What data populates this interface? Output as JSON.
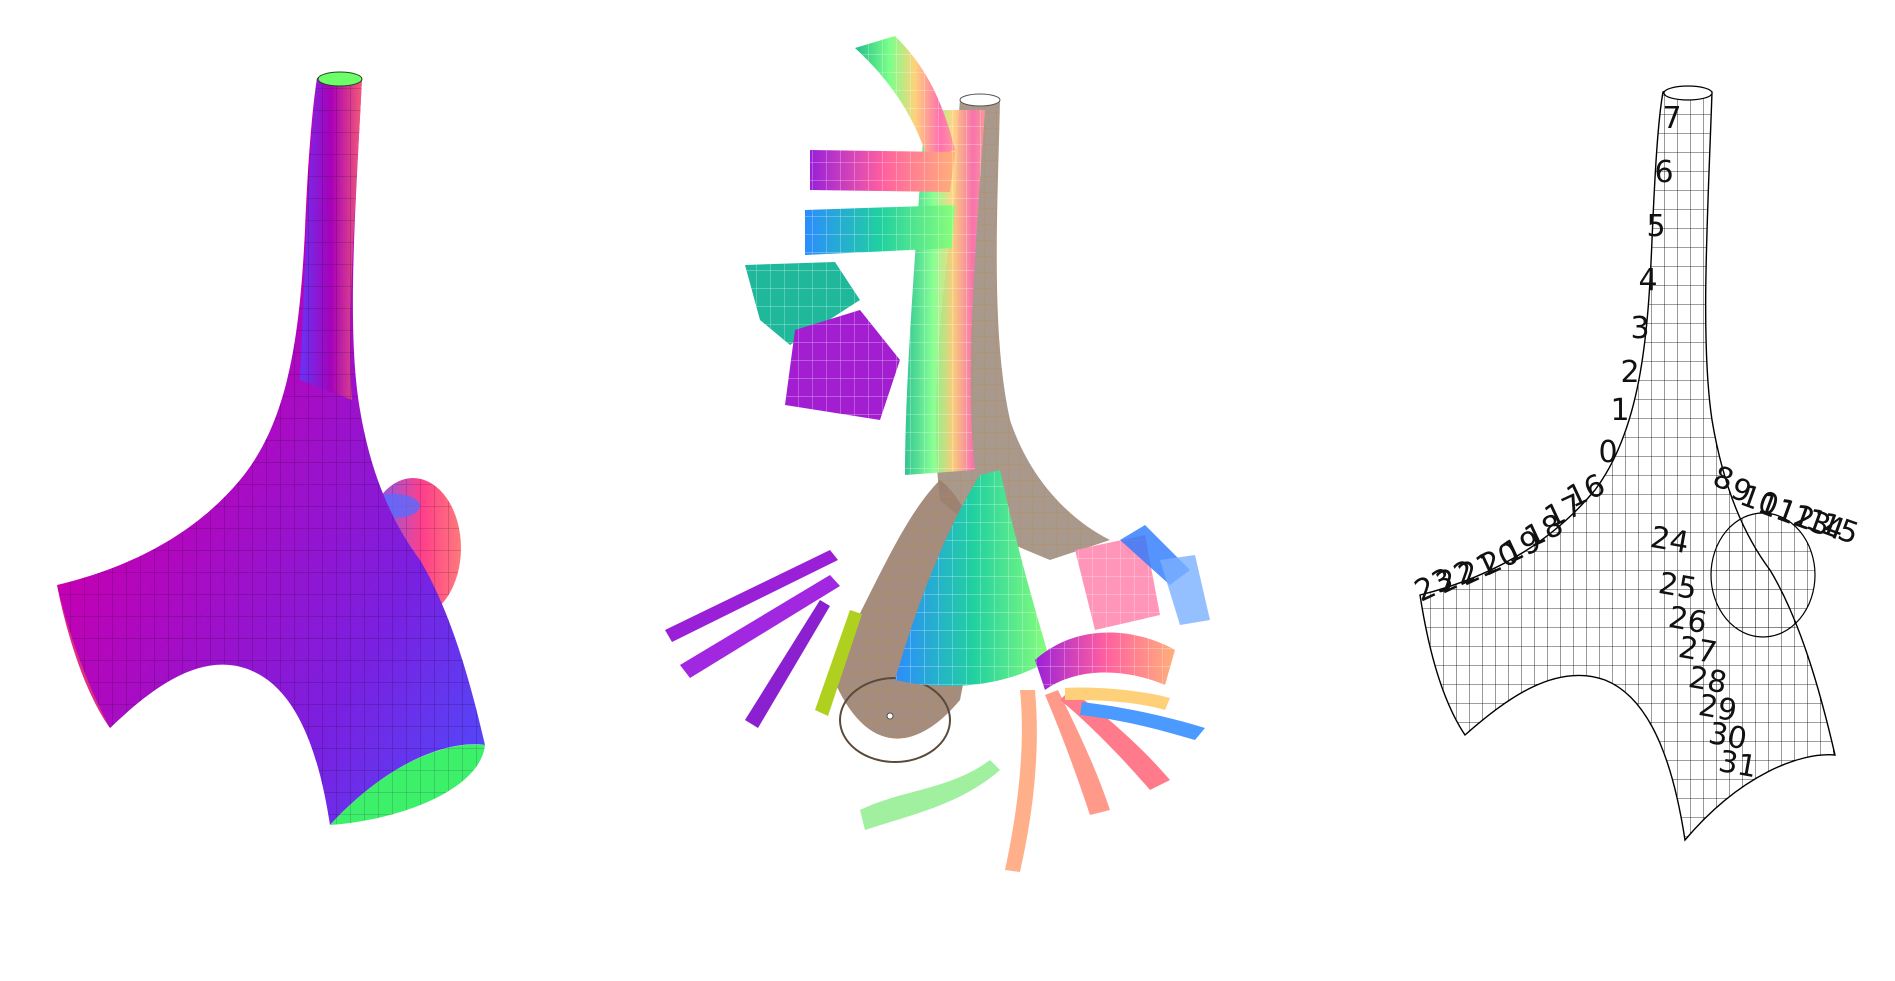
{
  "figure": {
    "panels": [
      {
        "id": "left",
        "style": "shaded-gradient",
        "colors": [
          "#ff6a6a",
          "#b000a8",
          "#5a2bff",
          "#3cff7a"
        ]
      },
      {
        "id": "middle",
        "style": "exploded-patches",
        "colors": [
          "#1fb89a",
          "#ff7ab0",
          "#b2ff7a",
          "#ffc07a",
          "#4a78ff",
          "#9a2bd8"
        ]
      },
      {
        "id": "right",
        "style": "wireframe-labeled",
        "colors": [
          "#000000"
        ]
      }
    ],
    "labels": [
      {
        "text": "7"
      },
      {
        "text": "6"
      },
      {
        "text": "5"
      },
      {
        "text": "4"
      },
      {
        "text": "3"
      },
      {
        "text": "2"
      },
      {
        "text": "1"
      },
      {
        "text": "0"
      },
      {
        "text": "16"
      },
      {
        "text": "17"
      },
      {
        "text": "18"
      },
      {
        "text": "19"
      },
      {
        "text": "20"
      },
      {
        "text": "21"
      },
      {
        "text": "22"
      },
      {
        "text": "23"
      },
      {
        "text": "8"
      },
      {
        "text": "9"
      },
      {
        "text": "10"
      },
      {
        "text": "11"
      },
      {
        "text": "12"
      },
      {
        "text": "13"
      },
      {
        "text": "14"
      },
      {
        "text": "15"
      },
      {
        "text": "24"
      },
      {
        "text": "25"
      },
      {
        "text": "26"
      },
      {
        "text": "27"
      },
      {
        "text": "28"
      },
      {
        "text": "29"
      },
      {
        "text": "30"
      },
      {
        "text": "31"
      }
    ]
  }
}
